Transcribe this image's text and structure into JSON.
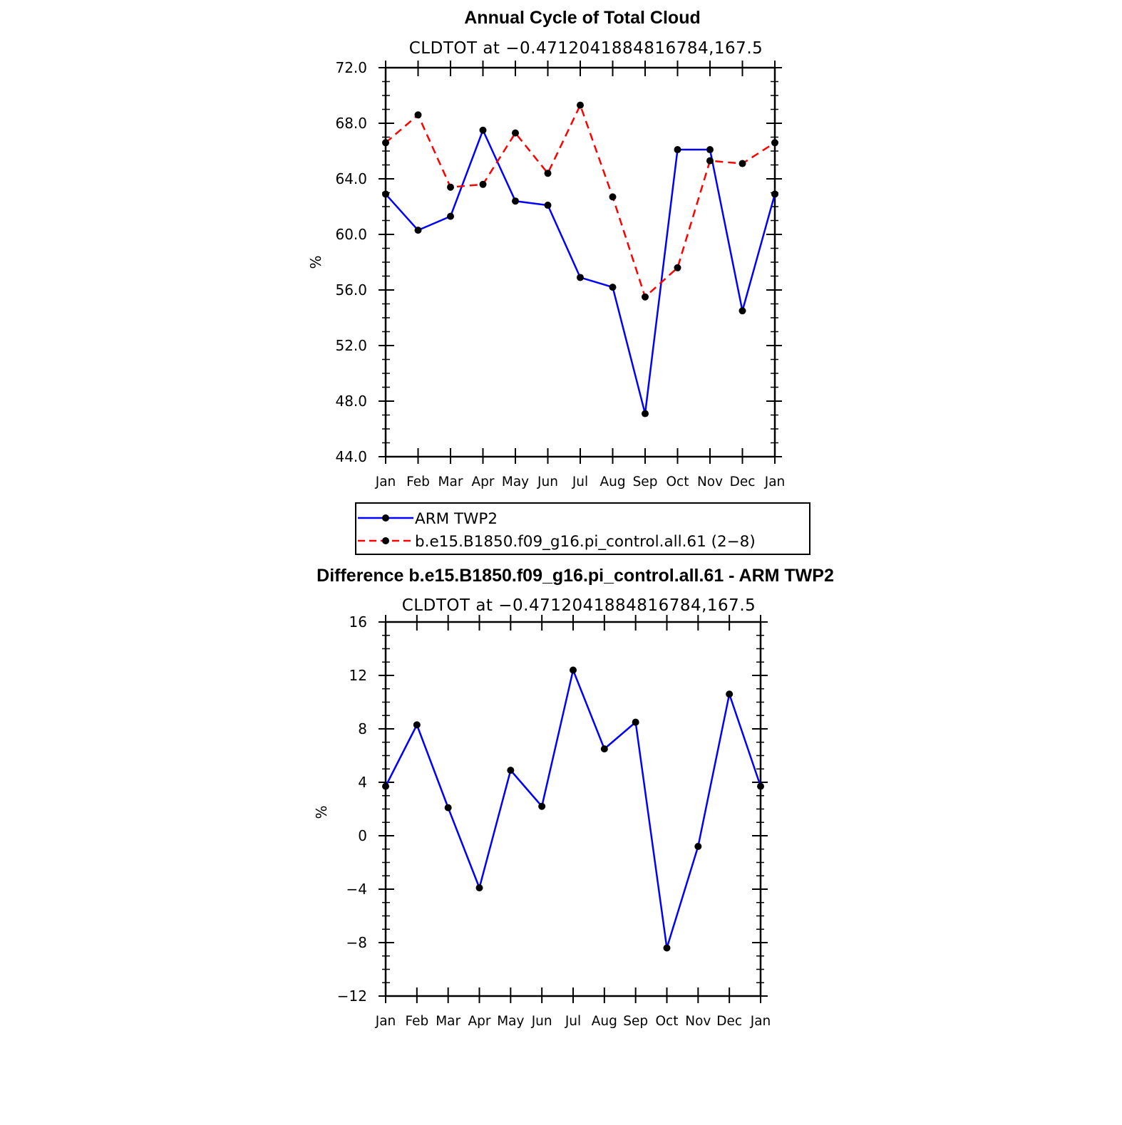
{
  "chart_data": [
    {
      "type": "line",
      "title": "Annual Cycle of Total Cloud",
      "subtitle": "CLDTOT at −0.4712041884816784,167.5",
      "ylabel": "%",
      "xlabel": "",
      "categories": [
        "Jan",
        "Feb",
        "Mar",
        "Apr",
        "May",
        "Jun",
        "Jul",
        "Aug",
        "Sep",
        "Oct",
        "Nov",
        "Dec",
        "Jan"
      ],
      "ylim": [
        44,
        72
      ],
      "yticks": [
        "44.0",
        "48.0",
        "52.0",
        "56.0",
        "60.0",
        "64.0",
        "68.0",
        "72.0"
      ],
      "series": [
        {
          "name": "ARM TWP2",
          "color": "#0000ff",
          "dash": "solid",
          "values": [
            62.9,
            60.3,
            61.3,
            67.5,
            62.4,
            62.1,
            56.9,
            56.2,
            47.1,
            66.1,
            66.1,
            54.5,
            62.9
          ]
        },
        {
          "name": "b.e15.B1850.f09_g16.pi_control.all.61 (2−8)",
          "color": "#ff0000",
          "dash": "dashed",
          "values": [
            66.6,
            68.6,
            63.4,
            63.6,
            67.3,
            64.4,
            69.3,
            62.7,
            55.5,
            57.6,
            65.3,
            65.1,
            66.6
          ]
        }
      ],
      "legend": "below"
    },
    {
      "type": "line",
      "title": "Difference b.e15.B1850.f09_g16.pi_control.all.61 - ARM TWP2",
      "subtitle": "CLDTOT at −0.4712041884816784,167.5",
      "ylabel": "%",
      "xlabel": "",
      "categories": [
        "Jan",
        "Feb",
        "Mar",
        "Apr",
        "May",
        "Jun",
        "Jul",
        "Aug",
        "Sep",
        "Oct",
        "Nov",
        "Dec",
        "Jan"
      ],
      "ylim": [
        -12,
        16
      ],
      "yticks": [
        "−12",
        "−8",
        "−4",
        "0",
        "4",
        "8",
        "12",
        "16"
      ],
      "series": [
        {
          "name": "",
          "color": "#0000ff",
          "dash": "solid",
          "values": [
            3.7,
            8.3,
            2.1,
            -3.9,
            4.9,
            2.2,
            12.4,
            6.5,
            8.5,
            -8.4,
            -0.8,
            10.6,
            3.7
          ]
        }
      ]
    }
  ]
}
